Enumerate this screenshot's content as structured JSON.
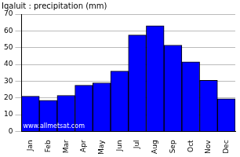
{
  "chart_data": {
    "type": "bar",
    "title": "Iqaluit : precipitation (mm)",
    "categories": [
      "Jan",
      "Feb",
      "Mar",
      "Apr",
      "May",
      "Jun",
      "Jul",
      "Aug",
      "Sep",
      "Oct",
      "Nov",
      "Dec"
    ],
    "values": [
      21,
      18.5,
      21.5,
      27.5,
      29,
      36,
      57.5,
      63,
      51.5,
      41.5,
      30.5,
      19.5
    ],
    "color": "#0000ff",
    "ylim": [
      0,
      70
    ],
    "yticks": [
      0,
      10,
      20,
      30,
      40,
      50,
      60,
      70
    ],
    "grid": true,
    "annotations": [
      "www.allmetsat.com"
    ]
  }
}
